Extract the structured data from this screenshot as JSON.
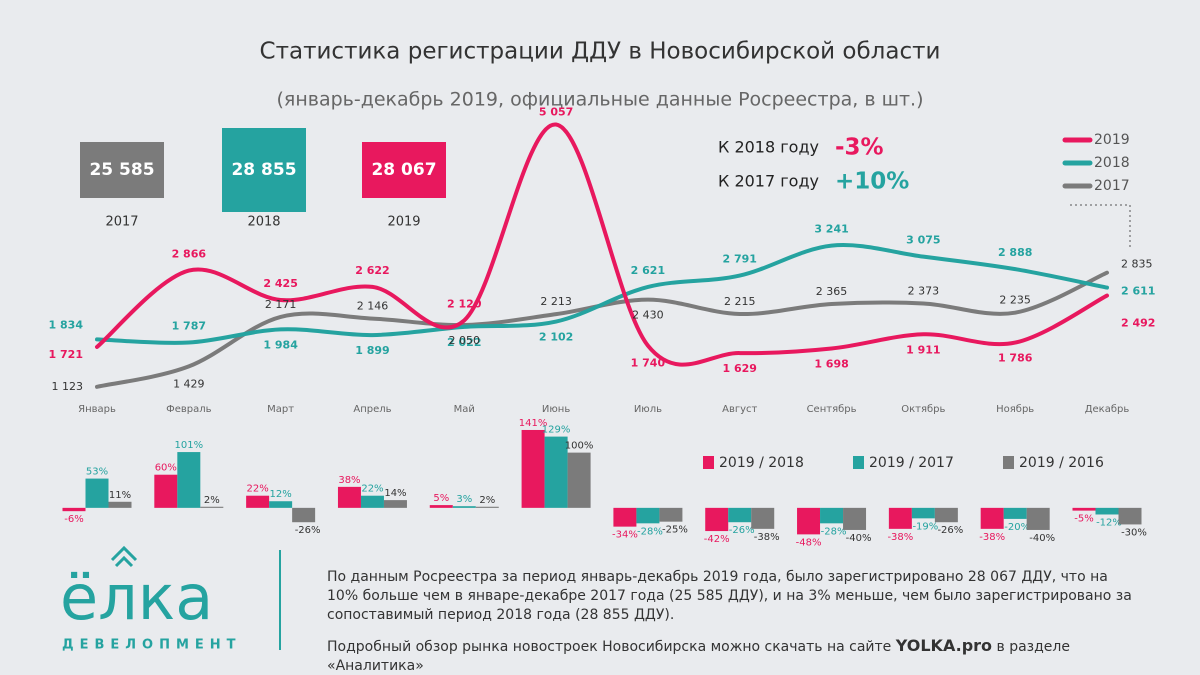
{
  "header": {
    "title": "Статистика регистрации ДДУ в Новосибирской области",
    "subtitle": "(январь-декабрь 2019, официальные данные Росреестра, в шт.)"
  },
  "totals": [
    {
      "text": "25 585",
      "year": "2017",
      "color": "#7b7b7b"
    },
    {
      "text": "28 855",
      "year": "2018",
      "color": "#25a3a0"
    },
    {
      "text": "28 067",
      "year": "2019",
      "color": "#e8185e"
    }
  ],
  "comparisons": [
    {
      "text": "К 2018 году",
      "change": "-3%",
      "color": "#e8185e"
    },
    {
      "text": "К 2017 году",
      "change": "+10%",
      "color": "#25a3a0"
    }
  ],
  "chart_data": [
    {
      "type": "line",
      "categories": [
        "Январь",
        "Февраль",
        "Март",
        "Апрель",
        "Май",
        "Июнь",
        "Июль",
        "Август",
        "Сентябрь",
        "Октябрь",
        "Ноябрь",
        "Декабрь"
      ],
      "ylim": [
        1000,
        5200
      ],
      "series": [
        {
          "name": "2019",
          "color": "#e8185e",
          "values": [
            1721,
            2866,
            2425,
            2622,
            2120,
            5057,
            1740,
            1629,
            1698,
            1911,
            1786,
            2492
          ],
          "value_labels": [
            "1 721",
            "2 866",
            "2 425",
            "2 622",
            "2 120",
            "5 057",
            "1 740",
            "1 629",
            "1 698",
            "1 911",
            "1 786",
            "2 492"
          ]
        },
        {
          "name": "2018",
          "color": "#25a3a0",
          "values": [
            1834,
            1787,
            1984,
            1899,
            2022,
            2102,
            2621,
            2791,
            3241,
            3075,
            2888,
            2611
          ],
          "value_labels": [
            "1 834",
            "1 787",
            "1 984",
            "1 899",
            "2 022",
            "2 102",
            "2 621",
            "2 791",
            "3 241",
            "3 075",
            "2 888",
            "2 611"
          ]
        },
        {
          "name": "2017",
          "color": "#7b7b7b",
          "values": [
            1123,
            1429,
            2171,
            2146,
            2050,
            2213,
            2430,
            2215,
            2365,
            2373,
            2235,
            2835
          ],
          "value_labels": [
            "1 123",
            "1 429",
            "2 171",
            "2 146",
            "2 050",
            "2 213",
            "2 430",
            "2 215",
            "2 365",
            "2 373",
            "2 235",
            "2 835"
          ]
        }
      ]
    },
    {
      "type": "bar",
      "ylim": [
        -60,
        150
      ],
      "series": [
        {
          "name": "2019 / 2018",
          "color": "#e8185e",
          "values": [
            -6,
            60,
            22,
            38,
            5,
            141,
            -34,
            -42,
            -48,
            -38,
            -38,
            -5
          ],
          "value_labels": [
            "-6%",
            "60%",
            "22%",
            "38%",
            "5%",
            "141%",
            "-34%",
            "-42%",
            "-48%",
            "-38%",
            "-38%",
            "-5%"
          ]
        },
        {
          "name": "2019 / 2017",
          "color": "#25a3a0",
          "values": [
            53,
            101,
            12,
            22,
            3,
            129,
            -28,
            -26,
            -28,
            -19,
            -20,
            -12
          ],
          "value_labels": [
            "53%",
            "101%",
            "12%",
            "22%",
            "3%",
            "129%",
            "-28%",
            "-26%",
            "-28%",
            "-19%",
            "-20%",
            "-12%"
          ]
        },
        {
          "name": "2019 / 2016",
          "color": "#7b7b7b",
          "values": [
            11,
            2,
            -26,
            14,
            2,
            100,
            -25,
            -38,
            -40,
            -26,
            -40,
            -30
          ],
          "value_labels": [
            "11%",
            "2%",
            "-26%",
            "14%",
            "2%",
            "100%",
            "-25%",
            "-38%",
            "-40%",
            "-26%",
            "-40%",
            "-30%"
          ]
        }
      ]
    }
  ],
  "logo": {
    "name": "ёлка",
    "sub": "ДЕВЕЛОПМЕНТ"
  },
  "footer": {
    "paragraph": "По данным Росреестра за период январь-декабрь 2019 года, было зарегистрировано 28 067 ДДУ, что на 10% больше чем в январе-декабре 2017 года (25 585 ДДУ), и на 3% меньше, чем было зарегистрировано за сопоставимый период 2018 года (28 855 ДДУ).",
    "note_before": "Подробный обзор рынка новостроек Новосибирска можно скачать на сайте ",
    "note_link": "YOLKA.pro",
    "note_after": " в разделе «Аналитика»"
  }
}
